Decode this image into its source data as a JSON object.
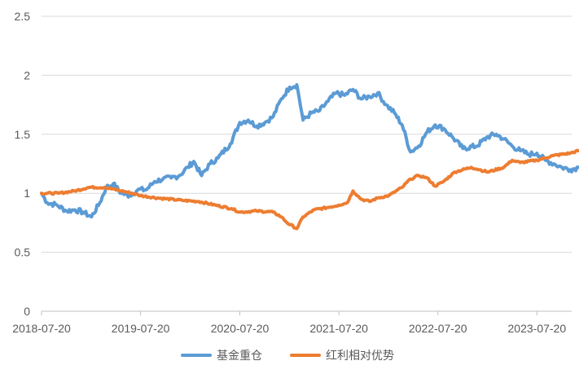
{
  "chart_data": {
    "type": "line",
    "title": "",
    "xlabel": "",
    "ylabel": "",
    "ylim": [
      0,
      2.5
    ],
    "yticks": [
      "0",
      "0.5",
      "1",
      "1.5",
      "2",
      "2.5"
    ],
    "xticks": [
      "2018-07-20",
      "2019-07-20",
      "2020-07-20",
      "2021-07-20",
      "2022-07-20",
      "2023-07-20"
    ],
    "grid": "horizontal",
    "legend_position": "bottom",
    "series": [
      {
        "name": "基金重仓",
        "color": "#5B9BD5",
        "points": [
          [
            "2018-07-20",
            1.0
          ],
          [
            "2018-08-10",
            0.92
          ],
          [
            "2018-09-15",
            0.9
          ],
          [
            "2018-10-20",
            0.85
          ],
          [
            "2018-11-20",
            0.86
          ],
          [
            "2018-12-20",
            0.84
          ],
          [
            "2019-01-20",
            0.8
          ],
          [
            "2019-02-20",
            0.92
          ],
          [
            "2019-03-15",
            1.05
          ],
          [
            "2019-04-10",
            1.08
          ],
          [
            "2019-05-10",
            1.0
          ],
          [
            "2019-06-10",
            0.98
          ],
          [
            "2019-07-10",
            1.03
          ],
          [
            "2019-08-10",
            1.03
          ],
          [
            "2019-09-10",
            1.1
          ],
          [
            "2019-10-10",
            1.12
          ],
          [
            "2019-11-10",
            1.13
          ],
          [
            "2019-12-10",
            1.15
          ],
          [
            "2020-01-10",
            1.22
          ],
          [
            "2020-02-01",
            1.27
          ],
          [
            "2020-03-01",
            1.15
          ],
          [
            "2020-04-01",
            1.25
          ],
          [
            "2020-05-01",
            1.3
          ],
          [
            "2020-06-15",
            1.42
          ],
          [
            "2020-07-20",
            1.6
          ],
          [
            "2020-08-20",
            1.62
          ],
          [
            "2020-09-20",
            1.57
          ],
          [
            "2020-10-20",
            1.6
          ],
          [
            "2020-11-20",
            1.65
          ],
          [
            "2020-12-20",
            1.8
          ],
          [
            "2021-01-20",
            1.9
          ],
          [
            "2021-02-15",
            1.92
          ],
          [
            "2021-03-10",
            1.62
          ],
          [
            "2021-04-10",
            1.68
          ],
          [
            "2021-05-10",
            1.7
          ],
          [
            "2021-06-10",
            1.78
          ],
          [
            "2021-07-10",
            1.85
          ],
          [
            "2021-08-10",
            1.83
          ],
          [
            "2021-09-10",
            1.88
          ],
          [
            "2021-10-10",
            1.8
          ],
          [
            "2021-11-10",
            1.82
          ],
          [
            "2021-12-10",
            1.85
          ],
          [
            "2022-01-10",
            1.75
          ],
          [
            "2022-02-10",
            1.68
          ],
          [
            "2022-03-10",
            1.58
          ],
          [
            "2022-04-10",
            1.35
          ],
          [
            "2022-05-10",
            1.4
          ],
          [
            "2022-06-10",
            1.52
          ],
          [
            "2022-07-10",
            1.58
          ],
          [
            "2022-08-10",
            1.55
          ],
          [
            "2022-09-10",
            1.48
          ],
          [
            "2022-10-20",
            1.38
          ],
          [
            "2022-12-10",
            1.4
          ],
          [
            "2023-01-20",
            1.48
          ],
          [
            "2023-02-20",
            1.5
          ],
          [
            "2023-03-20",
            1.46
          ],
          [
            "2023-04-20",
            1.4
          ],
          [
            "2023-05-20",
            1.36
          ],
          [
            "2023-06-20",
            1.33
          ],
          [
            "2023-07-20",
            1.34
          ],
          [
            "2023-08-20",
            1.28
          ],
          [
            "2023-09-20",
            1.25
          ],
          [
            "2023-10-20",
            1.22
          ],
          [
            "2023-11-20",
            1.2
          ],
          [
            "2023-12-20",
            1.22
          ]
        ]
      },
      {
        "name": "红利相对优势",
        "color": "#ED7D31",
        "points": [
          [
            "2018-07-20",
            1.0
          ],
          [
            "2018-09-20",
            1.0
          ],
          [
            "2018-11-20",
            1.02
          ],
          [
            "2019-01-10",
            1.05
          ],
          [
            "2019-03-10",
            1.05
          ],
          [
            "2019-05-10",
            1.02
          ],
          [
            "2019-06-20",
            1.0
          ],
          [
            "2019-07-20",
            0.98
          ],
          [
            "2019-09-20",
            0.96
          ],
          [
            "2019-12-20",
            0.94
          ],
          [
            "2020-02-20",
            0.93
          ],
          [
            "2020-04-20",
            0.9
          ],
          [
            "2020-06-20",
            0.87
          ],
          [
            "2020-07-20",
            0.84
          ],
          [
            "2020-09-20",
            0.85
          ],
          [
            "2020-11-20",
            0.84
          ],
          [
            "2020-12-20",
            0.8
          ],
          [
            "2021-01-10",
            0.75
          ],
          [
            "2021-02-15",
            0.7
          ],
          [
            "2021-03-10",
            0.8
          ],
          [
            "2021-04-20",
            0.86
          ],
          [
            "2021-06-10",
            0.88
          ],
          [
            "2021-07-20",
            0.9
          ],
          [
            "2021-08-20",
            0.92
          ],
          [
            "2021-09-10",
            1.02
          ],
          [
            "2021-10-10",
            0.95
          ],
          [
            "2021-11-10",
            0.93
          ],
          [
            "2021-12-10",
            0.96
          ],
          [
            "2022-01-20",
            0.98
          ],
          [
            "2022-03-10",
            1.05
          ],
          [
            "2022-04-10",
            1.12
          ],
          [
            "2022-05-10",
            1.15
          ],
          [
            "2022-06-10",
            1.13
          ],
          [
            "2022-07-10",
            1.06
          ],
          [
            "2022-08-10",
            1.1
          ],
          [
            "2022-09-20",
            1.18
          ],
          [
            "2022-11-20",
            1.22
          ],
          [
            "2022-12-20",
            1.2
          ],
          [
            "2023-01-20",
            1.18
          ],
          [
            "2023-03-20",
            1.22
          ],
          [
            "2023-04-20",
            1.28
          ],
          [
            "2023-05-20",
            1.26
          ],
          [
            "2023-07-20",
            1.28
          ],
          [
            "2023-09-20",
            1.32
          ],
          [
            "2023-11-20",
            1.34
          ],
          [
            "2023-12-20",
            1.36
          ]
        ]
      }
    ]
  }
}
